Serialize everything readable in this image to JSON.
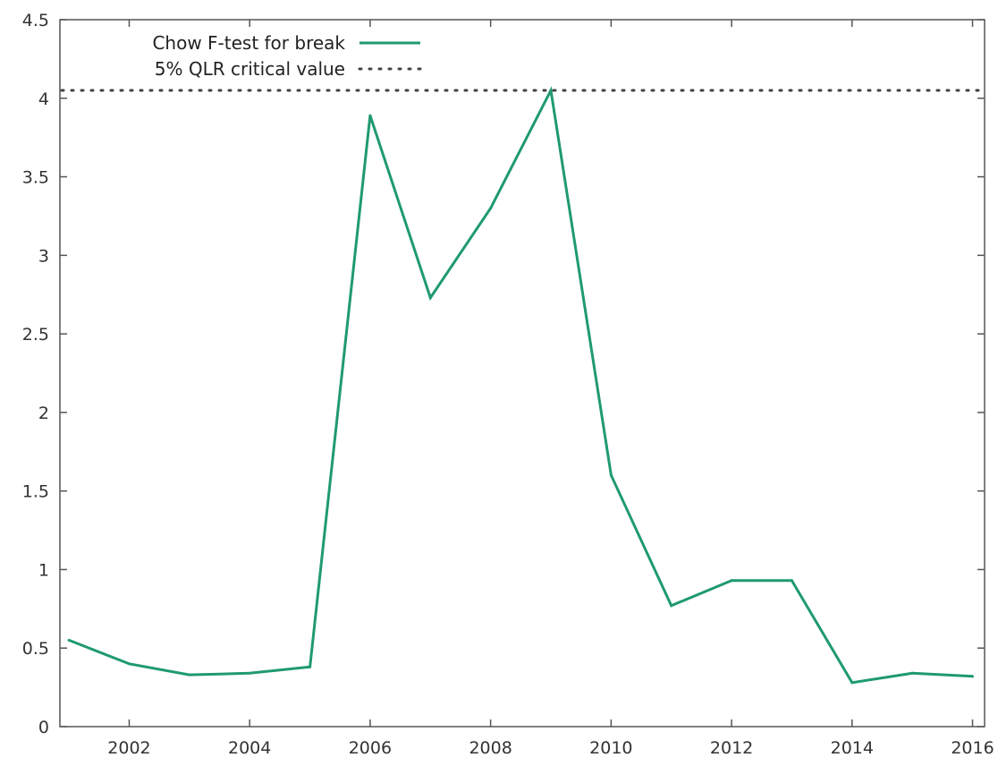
{
  "chart_data": {
    "type": "line",
    "title": "",
    "xlabel": "",
    "ylabel": "",
    "xlim": [
      2000.85,
      2016.2
    ],
    "ylim": [
      0,
      4.5
    ],
    "x": [
      2001,
      2002,
      2003,
      2004,
      2005,
      2006,
      2007,
      2008,
      2009,
      2010,
      2011,
      2012,
      2013,
      2014,
      2015,
      2016
    ],
    "series": [
      {
        "name": "Chow F-test for break",
        "color": "#1f9a6f",
        "style": "solid",
        "values": [
          0.55,
          0.4,
          0.33,
          0.34,
          0.38,
          3.89,
          2.73,
          3.3,
          4.05,
          1.6,
          0.77,
          0.93,
          0.93,
          0.28,
          0.34,
          0.32
        ]
      },
      {
        "name": "5% QLR critical value",
        "color": "#444444",
        "style": "dotted",
        "constant": 4.05
      }
    ],
    "x_ticks": [
      2002,
      2004,
      2006,
      2008,
      2010,
      2012,
      2014,
      2016
    ],
    "y_ticks": [
      0,
      0.5,
      1,
      1.5,
      2,
      2.5,
      3,
      3.5,
      4,
      4.5
    ],
    "x_tick_labels": [
      "2002",
      "2004",
      "2006",
      "2008",
      "2010",
      "2012",
      "2014",
      "2016"
    ],
    "y_tick_labels": [
      "0",
      "0.5",
      "1",
      "1.5",
      "2",
      "2.5",
      "3",
      "3.5",
      "4",
      "4.5"
    ],
    "grid": false,
    "legend_position": "top-left"
  }
}
